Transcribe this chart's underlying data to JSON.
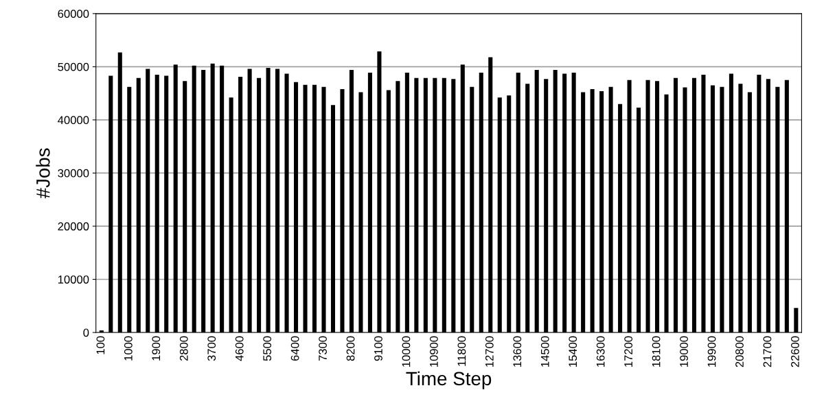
{
  "chart_data": {
    "type": "bar",
    "xlabel": "Time Step",
    "ylabel": "#Jobs",
    "categories": [
      "100",
      null,
      null,
      "1000",
      null,
      null,
      "1900",
      null,
      null,
      "2800",
      null,
      null,
      "3700",
      null,
      null,
      "4600",
      null,
      null,
      "5500",
      null,
      null,
      "6400",
      null,
      null,
      "7300",
      null,
      null,
      "8200",
      null,
      null,
      "9100",
      null,
      null,
      "10000",
      null,
      null,
      "10900",
      null,
      null,
      "11800",
      null,
      null,
      "12700",
      null,
      null,
      "13600",
      null,
      null,
      "14500",
      null,
      null,
      "15400",
      null,
      null,
      "16300",
      null,
      null,
      "17200",
      null,
      null,
      "18100",
      null,
      null,
      "19000",
      null,
      null,
      "19900",
      null,
      null,
      "20800",
      null,
      null,
      "21700",
      null,
      null,
      "22600"
    ],
    "values": [
      400,
      48300,
      52700,
      46200,
      47900,
      49600,
      48500,
      48300,
      50400,
      47300,
      50200,
      49400,
      50600,
      50200,
      44200,
      48100,
      49600,
      47900,
      49800,
      49600,
      48700,
      47100,
      46600,
      46600,
      46200,
      42800,
      45800,
      49400,
      45200,
      48900,
      52900,
      45600,
      47300,
      48900,
      47900,
      47900,
      47900,
      47900,
      47700,
      50400,
      46200,
      48900,
      51800,
      44200,
      44600,
      48900,
      46800,
      49400,
      47700,
      49400,
      48700,
      48900,
      45200,
      45800,
      45400,
      46200,
      43000,
      47500,
      42300,
      47500,
      47300,
      44800,
      47900,
      46100,
      47900,
      48500,
      46500,
      46200,
      48700,
      46800,
      45200,
      48500,
      47700,
      46200,
      47500,
      4600
    ],
    "color": "#000000",
    "ylim": [
      0,
      60000
    ],
    "yticks": [
      0,
      10000,
      20000,
      30000,
      40000,
      50000,
      60000
    ],
    "grid": "y"
  }
}
